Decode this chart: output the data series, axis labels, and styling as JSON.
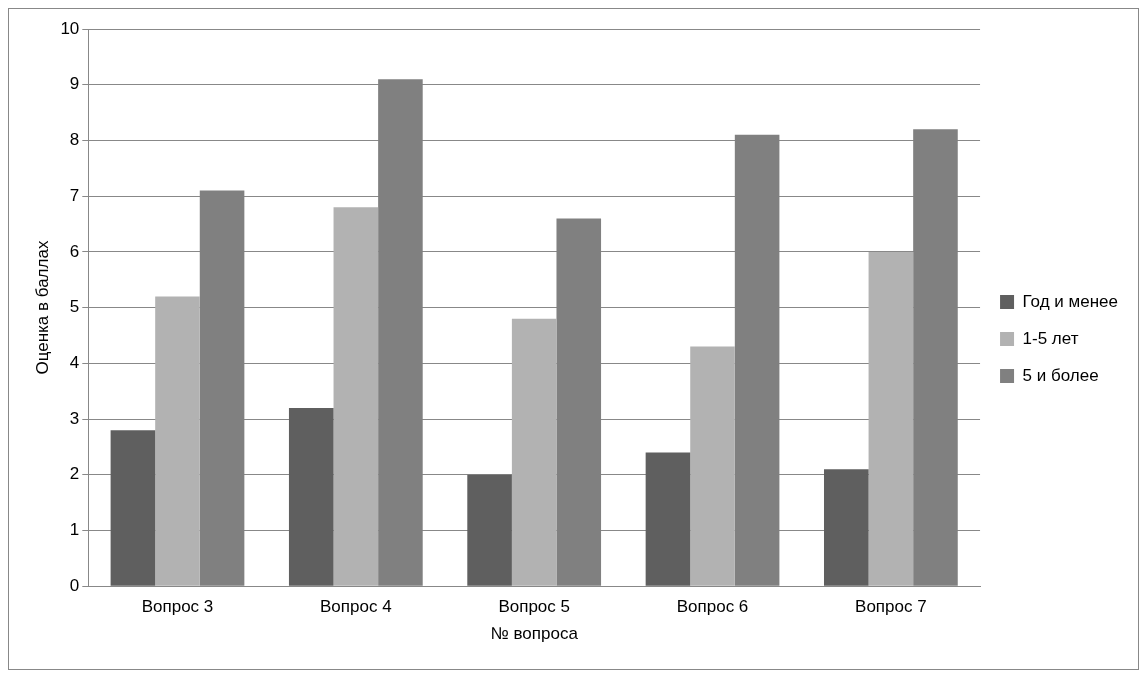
{
  "chart_data": {
    "type": "bar",
    "xlabel": "№ вопроса",
    "ylabel": "Оценка в баллах",
    "categories": [
      "Вопрос 3",
      "Вопрос 4",
      "Вопрос 5",
      "Вопрос 6",
      "Вопрос 7"
    ],
    "series": [
      {
        "name": "Год и менее",
        "color": "#5f5f5f",
        "values": [
          2.8,
          3.2,
          2.0,
          2.4,
          2.1
        ]
      },
      {
        "name": "1-5 лет",
        "color": "#b2b2b2",
        "values": [
          5.2,
          6.8,
          4.8,
          4.3,
          6.0
        ]
      },
      {
        "name": "5 и более",
        "color": "#808080",
        "values": [
          7.1,
          9.1,
          6.6,
          8.1,
          8.2
        ]
      }
    ],
    "ylim": [
      0,
      10
    ],
    "yticks": [
      0,
      1,
      2,
      3,
      4,
      5,
      6,
      7,
      8,
      9,
      10
    ],
    "grid": "y",
    "legend": "right"
  }
}
